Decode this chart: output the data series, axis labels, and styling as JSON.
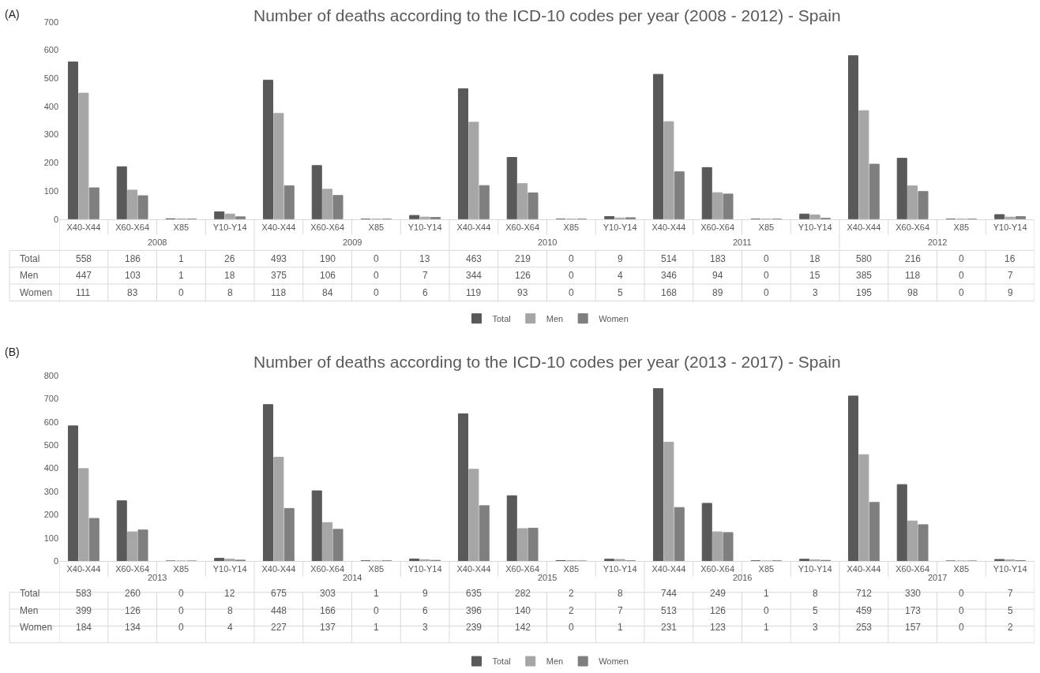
{
  "chart_data": [
    {
      "type": "bar",
      "title": "Number of deaths according to the ICD-10 codes per year (2008 - 2012) - Spain",
      "annotations": [
        "(A)",
        "2008",
        "2009",
        "2010",
        "2011",
        "2012"
      ],
      "categories": [
        "X40-X44",
        "X60-X64",
        "X85",
        "Y10-Y14",
        "X40-X44",
        "X60-X64",
        "X85",
        "Y10-Y14",
        "X40-X44",
        "X60-X64",
        "X85",
        "Y10-Y14",
        "X40-X44",
        "X60-X64",
        "X85",
        "Y10-Y14",
        "X40-X44",
        "X60-X64",
        "X85",
        "Y10-Y14"
      ],
      "series": [
        {
          "name": "Total",
          "color": "#595959",
          "values": [
            558,
            186,
            1,
            26,
            493,
            190,
            0,
            13,
            463,
            219,
            0,
            9,
            514,
            183,
            0,
            18,
            580,
            216,
            0,
            16
          ]
        },
        {
          "name": "Men",
          "color": "#a6a6a6",
          "values": [
            447,
            103,
            1,
            18,
            375,
            106,
            0,
            7,
            344,
            126,
            0,
            4,
            346,
            94,
            0,
            15,
            385,
            118,
            0,
            7
          ]
        },
        {
          "name": "Women",
          "color": "#7f7f7f",
          "values": [
            111,
            83,
            0,
            8,
            118,
            84,
            0,
            6,
            119,
            93,
            0,
            5,
            168,
            89,
            0,
            3,
            195,
            98,
            0,
            9
          ]
        }
      ],
      "ylim": [
        0,
        700
      ],
      "yticks": [
        0,
        100,
        200,
        300,
        400,
        500,
        600,
        700
      ],
      "data_labels": true,
      "legend": "bottom"
    },
    {
      "type": "bar",
      "title": "Number of deaths according to the ICD-10 codes per year (2013 - 2017) - Spain",
      "annotations": [
        "(B)",
        "2013",
        "2014",
        "2015",
        "2016",
        "2017"
      ],
      "categories": [
        "X40-X44",
        "X60-X64",
        "X85",
        "Y10-Y14",
        "X40-X44",
        "X60-X64",
        "X85",
        "Y10-Y14",
        "X40-X44",
        "X60-X64",
        "X85",
        "Y10-Y14",
        "X40-X44",
        "X60-X64",
        "X85",
        "Y10-Y14",
        "X40-X44",
        "X60-X64",
        "X85",
        "Y10-Y14"
      ],
      "series": [
        {
          "name": "Total",
          "color": "#595959",
          "values": [
            583,
            260,
            0,
            12,
            675,
            303,
            1,
            9,
            635,
            282,
            2,
            8,
            744,
            249,
            1,
            8,
            712,
            330,
            0,
            7
          ]
        },
        {
          "name": "Men",
          "color": "#a6a6a6",
          "values": [
            399,
            126,
            0,
            8,
            448,
            166,
            0,
            6,
            396,
            140,
            2,
            7,
            513,
            126,
            0,
            5,
            459,
            173,
            0,
            5
          ]
        },
        {
          "name": "Women",
          "color": "#7f7f7f",
          "values": [
            184,
            134,
            0,
            4,
            227,
            137,
            1,
            3,
            239,
            142,
            0,
            1,
            231,
            123,
            1,
            3,
            253,
            157,
            0,
            2
          ]
        }
      ],
      "ylim": [
        0,
        800
      ],
      "yticks": [
        0,
        100,
        200,
        300,
        400,
        500,
        600,
        700,
        800
      ],
      "data_labels": true,
      "legend": "bottom"
    }
  ]
}
